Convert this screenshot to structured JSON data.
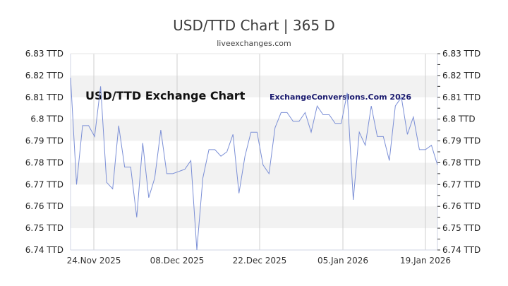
{
  "header": {
    "title": "USD/TTD Chart | 365 D",
    "subtitle": "liveexchanges.com"
  },
  "watermarks": {
    "left": "USD/TTD Exchange Chart",
    "right": "ExchangeConversions.Com 2026"
  },
  "colors": {
    "line": "#7b8fd6",
    "band": "#f2f2f2",
    "grid": "#cfcfcf",
    "axis": "#d0d4e4"
  },
  "chart_data": {
    "type": "line",
    "title": "USD/TTD Chart | 365 D",
    "subtitle": "liveexchanges.com",
    "xlabel": "",
    "ylabel": "",
    "ylim": [
      6.74,
      6.83
    ],
    "y_ticks": [
      "6.83 TTD",
      "6.82 TTD",
      "6.81 TTD",
      "6.8 TTD",
      "6.79 TTD",
      "6.78 TTD",
      "6.77 TTD",
      "6.76 TTD",
      "6.75 TTD",
      "6.74 TTD"
    ],
    "x_ticks": [
      "24.Nov 2025",
      "08.Dec 2025",
      "22.Dec 2025",
      "05.Jan 2026",
      "19.Jan 2026"
    ],
    "grid": true,
    "legend": "none",
    "series": [
      {
        "name": "USD/TTD",
        "values": [
          6.819,
          6.77,
          6.797,
          6.797,
          6.792,
          6.815,
          6.771,
          6.768,
          6.797,
          6.778,
          6.778,
          6.755,
          6.789,
          6.764,
          6.773,
          6.795,
          6.775,
          6.775,
          6.776,
          6.777,
          6.781,
          6.74,
          6.773,
          6.786,
          6.786,
          6.783,
          6.785,
          6.793,
          6.766,
          6.783,
          6.794,
          6.794,
          6.779,
          6.775,
          6.796,
          6.803,
          6.803,
          6.799,
          6.799,
          6.803,
          6.794,
          6.806,
          6.802,
          6.802,
          6.798,
          6.798,
          6.812,
          6.763,
          6.794,
          6.788,
          6.806,
          6.792,
          6.792,
          6.781,
          6.806,
          6.81,
          6.793,
          6.801,
          6.786,
          6.786,
          6.788,
          6.779
        ]
      }
    ]
  }
}
